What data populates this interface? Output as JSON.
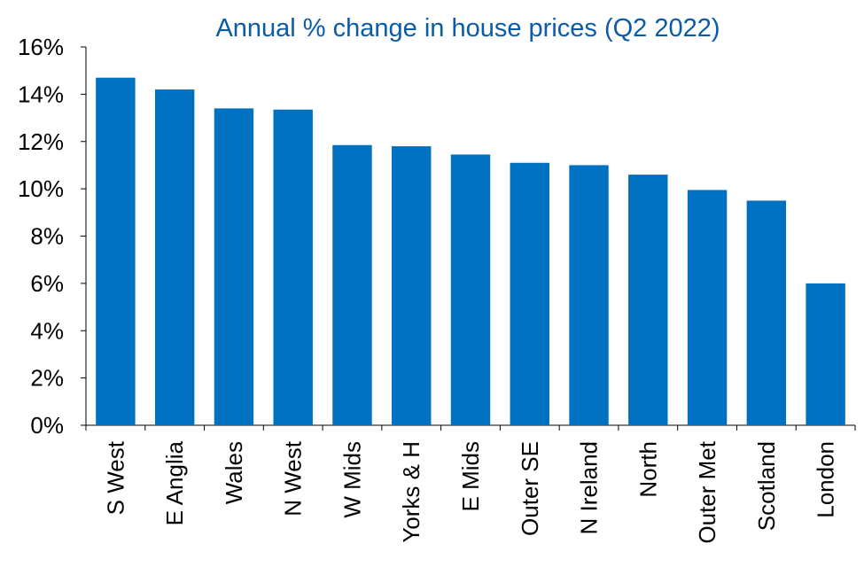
{
  "chart_data": {
    "type": "bar",
    "title": "Annual % change in house prices (Q2 2022)",
    "xlabel": "",
    "ylabel": "",
    "categories": [
      "S West",
      "E Anglia",
      "Wales",
      "N West",
      "W Mids",
      "Yorks & H",
      "E Mids",
      "Outer SE",
      "N Ireland",
      "North",
      "Outer Met",
      "Scotland",
      "London"
    ],
    "values": [
      14.7,
      14.2,
      13.4,
      13.35,
      11.85,
      11.8,
      11.45,
      11.1,
      11.0,
      10.6,
      9.95,
      9.5,
      6.0
    ],
    "yticks": [
      "0%",
      "2%",
      "4%",
      "6%",
      "8%",
      "10%",
      "12%",
      "14%",
      "16%"
    ],
    "ylim": [
      0,
      16
    ],
    "grid": false,
    "bar_color": "#0070c0",
    "title_color": "#0a5ca8"
  }
}
